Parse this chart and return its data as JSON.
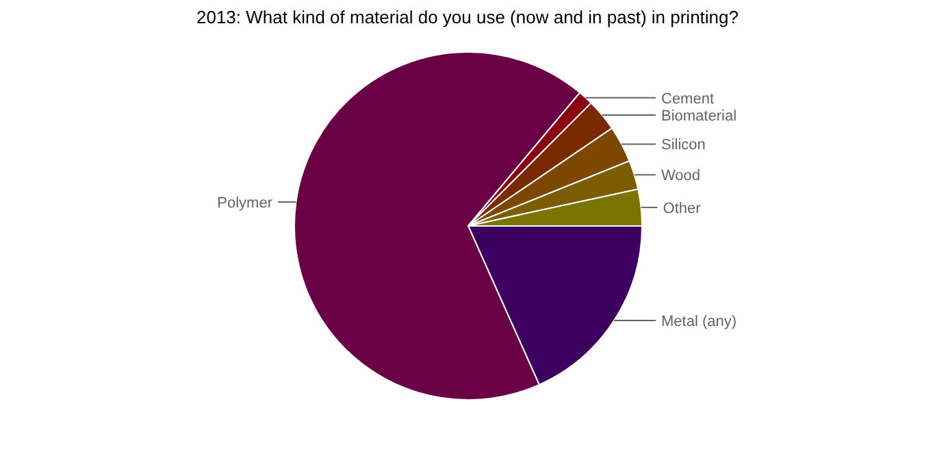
{
  "chart_data": {
    "type": "pie",
    "title": "2013: What kind of material do you use (now and in past) in printing?",
    "categories": [
      "Metal (any)",
      "Polymer",
      "Cement",
      "Biomaterial",
      "Silicon",
      "Wood",
      "Other"
    ],
    "values": [
      18.3,
      67.8,
      1.4,
      3,
      3.4,
      2.7,
      3.4
    ],
    "colors": [
      "#3d0061",
      "#6a0045",
      "#8a0010",
      "#7a2a00",
      "#7c4800",
      "#7c5c00",
      "#7c7400"
    ]
  }
}
